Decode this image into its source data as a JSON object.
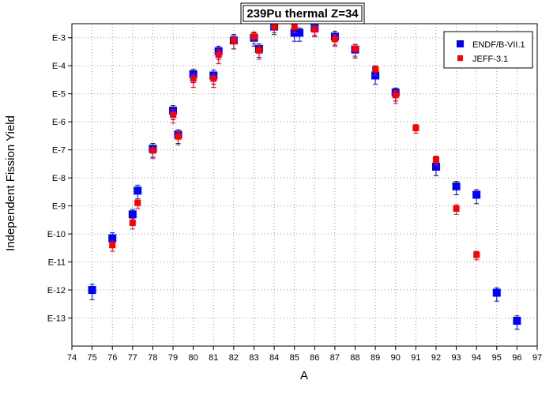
{
  "chart_data": {
    "type": "scatter",
    "title": "239Pu thermal Z=34",
    "xlabel": "A",
    "ylabel": "Independent Fission Yield",
    "xlim": [
      74,
      97
    ],
    "ylim_log10": [
      -14,
      -2.5
    ],
    "y_scale": "log",
    "grid": true,
    "legend_position": "top-right",
    "x_ticks": [
      74,
      75,
      76,
      77,
      78,
      79,
      80,
      81,
      82,
      83,
      84,
      85,
      86,
      87,
      88,
      89,
      90,
      91,
      92,
      93,
      94,
      95,
      96,
      97
    ],
    "y_ticks": [
      {
        "value": -3,
        "label": "E-3"
      },
      {
        "value": -4,
        "label": "E-4"
      },
      {
        "value": -5,
        "label": "E-5"
      },
      {
        "value": -6,
        "label": "E-6"
      },
      {
        "value": -7,
        "label": "E-7"
      },
      {
        "value": -8,
        "label": "E-8"
      },
      {
        "value": -9,
        "label": "E-9"
      },
      {
        "value": -10,
        "label": "E-10"
      },
      {
        "value": -11,
        "label": "E-11"
      },
      {
        "value": -12,
        "label": "E-12"
      },
      {
        "value": -13,
        "label": "E-13"
      }
    ],
    "series": [
      {
        "name": "ENDF/B-VII.1",
        "color": "#0000ff",
        "marker": "square",
        "points": [
          {
            "x": 75,
            "y": 1e-12,
            "ylo": 4.5e-13,
            "yhi": 1.6e-12
          },
          {
            "x": 76,
            "y": 7e-11,
            "ylo": 3.5e-11,
            "yhi": 1.1e-10
          },
          {
            "x": 77,
            "y": 5e-10,
            "ylo": 2.5e-10,
            "yhi": 7.5e-10
          },
          {
            "x": 77.25,
            "y": 3.5e-09,
            "ylo": 1.8e-09,
            "yhi": 5.5e-09
          },
          {
            "x": 78,
            "y": 1.1e-07,
            "ylo": 5.5e-08,
            "yhi": 1.7e-07
          },
          {
            "x": 79,
            "y": 2.5e-06,
            "ylo": 1.2e-06,
            "yhi": 3.8e-06
          },
          {
            "x": 79.25,
            "y": 3.5e-07,
            "ylo": 1.7e-07,
            "yhi": 5.2e-07
          },
          {
            "x": 80,
            "y": 5e-05,
            "ylo": 2.5e-05,
            "yhi": 7.5e-05
          },
          {
            "x": 81,
            "y": 4.5e-05,
            "ylo": 2.2e-05,
            "yhi": 7e-05
          },
          {
            "x": 81.25,
            "y": 0.00033,
            "ylo": 0.00017,
            "yhi": 0.0005
          },
          {
            "x": 82,
            "y": 0.0008,
            "ylo": 0.0004,
            "yhi": 0.0013
          },
          {
            "x": 83,
            "y": 0.001,
            "ylo": 0.0005,
            "yhi": 0.0015
          },
          {
            "x": 83.25,
            "y": 0.0004,
            "ylo": 0.0002,
            "yhi": 0.0006
          },
          {
            "x": 84,
            "y": 0.0025,
            "ylo": 0.0013,
            "yhi": 0.0038
          },
          {
            "x": 85,
            "y": 0.0015,
            "ylo": 0.00075,
            "yhi": 0.0022
          },
          {
            "x": 85.25,
            "y": 0.0015,
            "ylo": 0.00075,
            "yhi": 0.0022
          },
          {
            "x": 86,
            "y": 0.0022,
            "ylo": 0.0011,
            "yhi": 0.0033
          },
          {
            "x": 87,
            "y": 0.0011,
            "ylo": 0.00055,
            "yhi": 0.0017
          },
          {
            "x": 88,
            "y": 0.00038,
            "ylo": 0.00019,
            "yhi": 0.00057
          },
          {
            "x": 89,
            "y": 4.5e-05,
            "ylo": 2.2e-05,
            "yhi": 6.8e-05
          },
          {
            "x": 90,
            "y": 1.1e-05,
            "ylo": 5.5e-06,
            "yhi": 1.6e-05
          },
          {
            "x": 92,
            "y": 2.5e-08,
            "ylo": 1.2e-08,
            "yhi": 3.8e-08
          },
          {
            "x": 93,
            "y": 5e-09,
            "ylo": 2.5e-09,
            "yhi": 7.5e-09
          },
          {
            "x": 94,
            "y": 2.5e-09,
            "ylo": 1.2e-09,
            "yhi": 3.8e-09
          },
          {
            "x": 95,
            "y": 8e-13,
            "ylo": 4e-13,
            "yhi": 1.2e-12
          },
          {
            "x": 96,
            "y": 8e-14,
            "ylo": 4e-14,
            "yhi": 1.2e-13
          }
        ]
      },
      {
        "name": "JEFF-3.1",
        "color": "#ff0000",
        "marker": "square",
        "points": [
          {
            "x": 76,
            "y": 4e-11,
            "ylo": 2.4e-11,
            "yhi": 5.6e-11
          },
          {
            "x": 77,
            "y": 2.5e-10,
            "ylo": 1.5e-10,
            "yhi": 3.5e-10
          },
          {
            "x": 77.25,
            "y": 1.3e-09,
            "ylo": 8e-10,
            "yhi": 1.8e-09
          },
          {
            "x": 78,
            "y": 9.5e-08,
            "ylo": 5e-08,
            "yhi": 1.5e-07
          },
          {
            "x": 79,
            "y": 1.8e-06,
            "ylo": 9e-07,
            "yhi": 2.7e-06
          },
          {
            "x": 79.25,
            "y": 3e-07,
            "ylo": 1.5e-07,
            "yhi": 4.5e-07
          },
          {
            "x": 80,
            "y": 3.5e-05,
            "ylo": 1.7e-05,
            "yhi": 5.2e-05
          },
          {
            "x": 81,
            "y": 3.5e-05,
            "ylo": 1.7e-05,
            "yhi": 5.2e-05
          },
          {
            "x": 81.25,
            "y": 0.00025,
            "ylo": 0.00012,
            "yhi": 0.00038
          },
          {
            "x": 82,
            "y": 0.0008,
            "ylo": 0.0004,
            "yhi": 0.0012
          },
          {
            "x": 83,
            "y": 0.0011,
            "ylo": 0.0006,
            "yhi": 0.0016
          },
          {
            "x": 83.25,
            "y": 0.00035,
            "ylo": 0.00017,
            "yhi": 0.00052
          },
          {
            "x": 84,
            "y": 0.0025,
            "ylo": 0.0015,
            "yhi": 0.0036
          },
          {
            "x": 85,
            "y": 0.0025,
            "ylo": 0.0015,
            "yhi": 0.0036
          },
          {
            "x": 86,
            "y": 0.002,
            "ylo": 0.0012,
            "yhi": 0.0028
          },
          {
            "x": 87,
            "y": 0.0009,
            "ylo": 0.0005,
            "yhi": 0.0013
          },
          {
            "x": 88,
            "y": 0.0004,
            "ylo": 0.00022,
            "yhi": 0.00058
          },
          {
            "x": 89,
            "y": 7.5e-05,
            "ylo": 4.5e-05,
            "yhi": 0.0001
          },
          {
            "x": 90,
            "y": 9e-06,
            "ylo": 4.5e-06,
            "yhi": 1.3e-05
          },
          {
            "x": 91,
            "y": 6e-07,
            "ylo": 4e-07,
            "yhi": 8e-07
          },
          {
            "x": 92,
            "y": 4.5e-08,
            "ylo": 3e-08,
            "yhi": 6e-08
          },
          {
            "x": 93,
            "y": 8e-10,
            "ylo": 5e-10,
            "yhi": 1.1e-09
          },
          {
            "x": 94,
            "y": 1.8e-11,
            "ylo": 1.2e-11,
            "yhi": 2.4e-11
          }
        ]
      }
    ]
  }
}
